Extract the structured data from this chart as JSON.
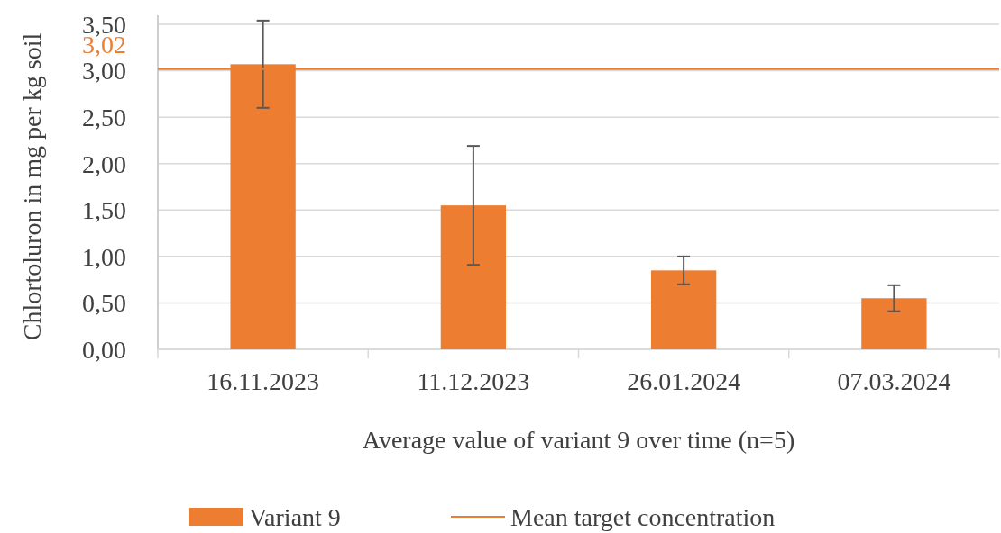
{
  "chart_data": {
    "type": "bar",
    "xlabel": "Average value of variant 9 over time (n=5)",
    "ylabel": "Chlortoluron in mg per kg soil",
    "categories": [
      "16.11.2023",
      "11.12.2023",
      "26.01.2024",
      "07.03.2024"
    ],
    "series": [
      {
        "name": "Variant 9",
        "color": "#ed7d31",
        "values": [
          3.07,
          1.55,
          0.85,
          0.55
        ],
        "errors": [
          0.47,
          0.64,
          0.15,
          0.14
        ]
      }
    ],
    "ylim": [
      0,
      3.5
    ],
    "yticks": [
      {
        "value": 0,
        "label": "0,00"
      },
      {
        "value": 0.5,
        "label": "0,50"
      },
      {
        "value": 1,
        "label": "1,00"
      },
      {
        "value": 1.5,
        "label": "1,50"
      },
      {
        "value": 2,
        "label": "2,00"
      },
      {
        "value": 2.5,
        "label": "2,50"
      },
      {
        "value": 3,
        "label": "3,00"
      },
      {
        "value": 3.5,
        "label": "3,50"
      }
    ],
    "ref_lines": [
      {
        "axis": "y",
        "value": 3.02,
        "label": "Mean target concentration",
        "color": "#ed7d31",
        "line_style": "solid"
      }
    ],
    "annotations": [
      "3,02"
    ],
    "grid": "y",
    "legend": "bottom"
  }
}
